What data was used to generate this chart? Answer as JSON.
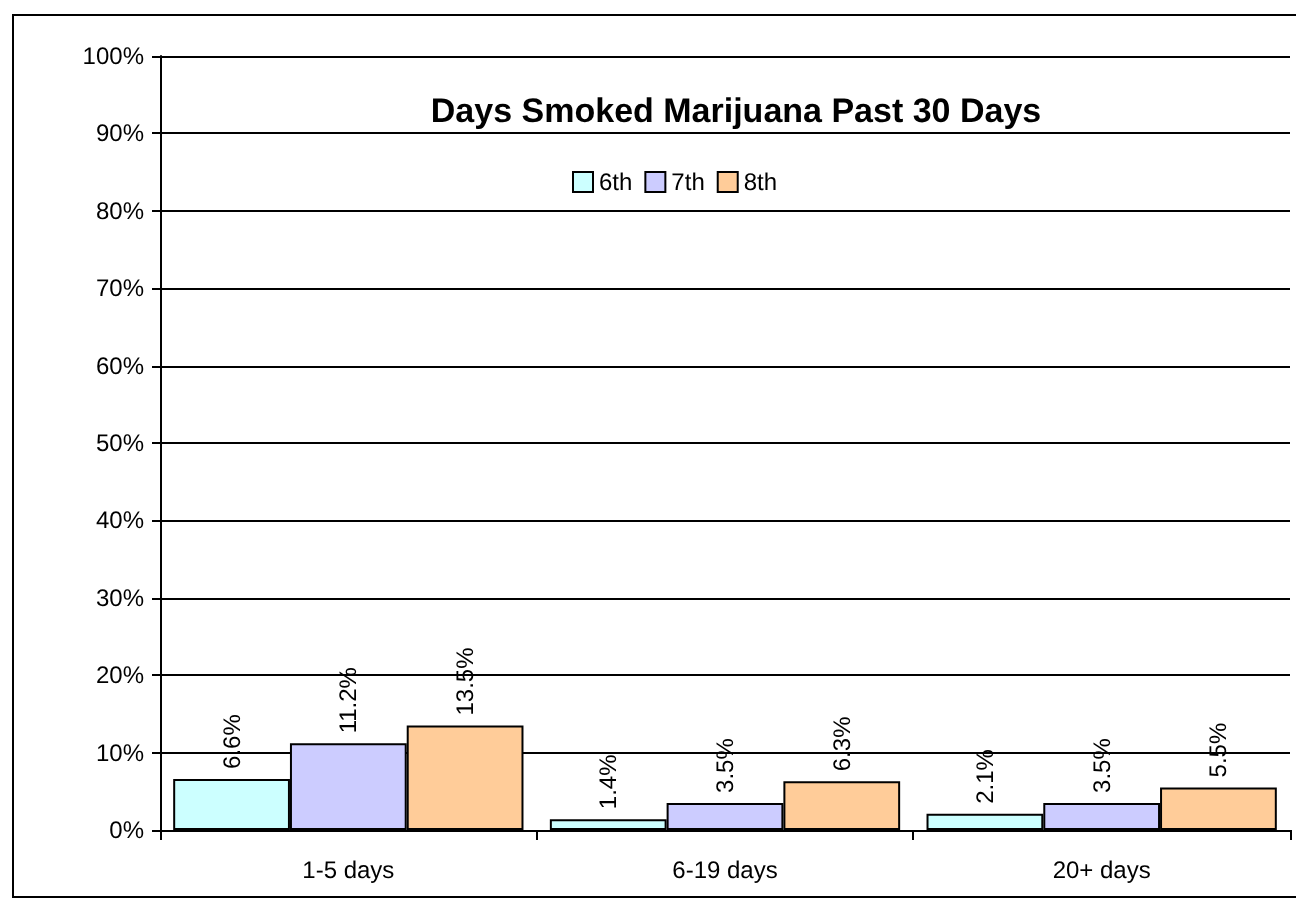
{
  "chart_data": {
    "type": "bar",
    "title": "Days Smoked Marijuana Past 30 Days",
    "categories": [
      "1-5 days",
      "6-19 days",
      "20+ days"
    ],
    "series": [
      {
        "name": "6th",
        "color": "#ccffff",
        "values": [
          6.6,
          1.4,
          2.1
        ],
        "value_labels": [
          "6.6%",
          "1.4%",
          "2.1%"
        ]
      },
      {
        "name": "7th",
        "color": "#ccccff",
        "values": [
          11.2,
          3.5,
          3.5
        ],
        "value_labels": [
          "11.2%",
          "3.5%",
          "3.5%"
        ]
      },
      {
        "name": "8th",
        "color": "#ffcc99",
        "values": [
          13.5,
          6.3,
          5.5
        ],
        "value_labels": [
          "13.5%",
          "6.3%",
          "5.5%"
        ]
      }
    ],
    "ylim": [
      0,
      100
    ],
    "yticks": [
      {
        "value": 0,
        "label": "0%"
      },
      {
        "value": 10,
        "label": "10%"
      },
      {
        "value": 20,
        "label": "20%"
      },
      {
        "value": 30,
        "label": "30%"
      },
      {
        "value": 40,
        "label": "40%"
      },
      {
        "value": 50,
        "label": "50%"
      },
      {
        "value": 60,
        "label": "60%"
      },
      {
        "value": 70,
        "label": "70%"
      },
      {
        "value": 80,
        "label": "80%"
      },
      {
        "value": 90,
        "label": "90%"
      },
      {
        "value": 100,
        "label": "100%"
      }
    ],
    "grid": "y",
    "legend": "top"
  }
}
